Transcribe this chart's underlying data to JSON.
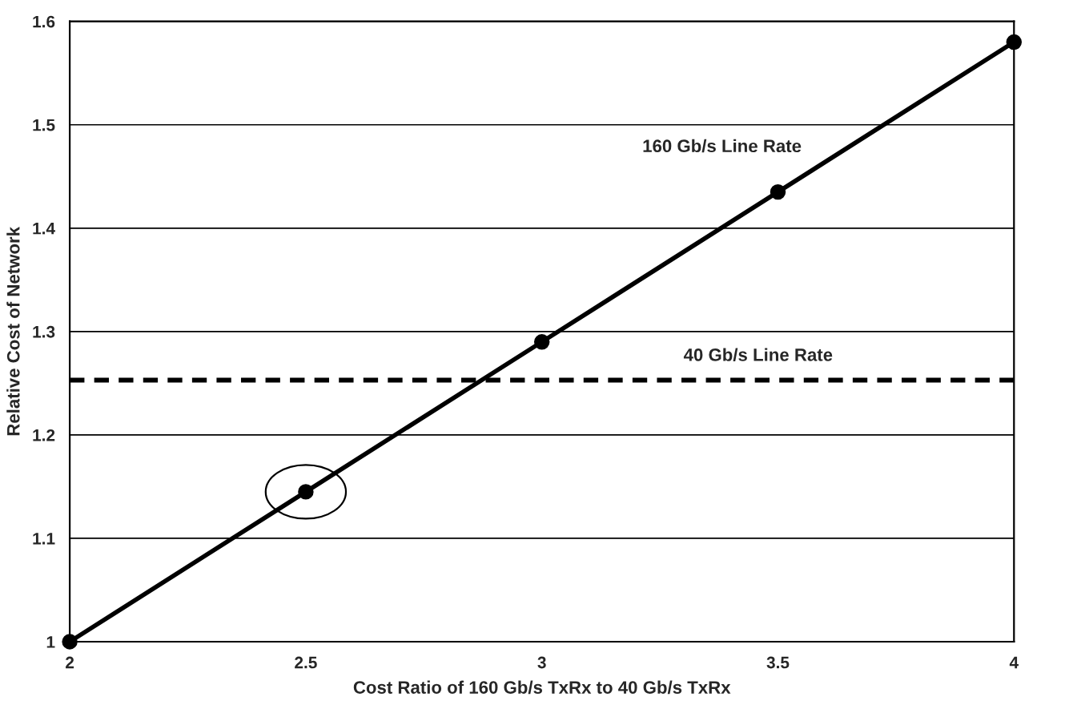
{
  "chart_data": {
    "type": "line",
    "xlabel": "Cost Ratio of 160 Gb/s TxRx to 40 Gb/s TxRx",
    "ylabel": "Relative Cost of Network",
    "x": [
      2,
      2.5,
      3,
      3.5,
      4
    ],
    "series": [
      {
        "name": "160 Gb/s Line Rate",
        "color": "#000000",
        "values": [
          1.0,
          1.145,
          1.29,
          1.435,
          1.58
        ]
      }
    ],
    "xlim": [
      2,
      4
    ],
    "xticks": [
      2,
      2.5,
      3,
      3.5,
      4
    ],
    "ylim": [
      1,
      1.6
    ],
    "yticks": [
      1,
      1.1,
      1.2,
      1.3,
      1.4,
      1.5,
      1.6
    ],
    "ref_lines": [
      {
        "axis": "y",
        "value": 1.253,
        "label": "40 Gb/s Line Rate",
        "color": "#000000",
        "line_style": "dashed"
      }
    ],
    "grid": "y",
    "marker": "circle",
    "line_style": "solid"
  }
}
